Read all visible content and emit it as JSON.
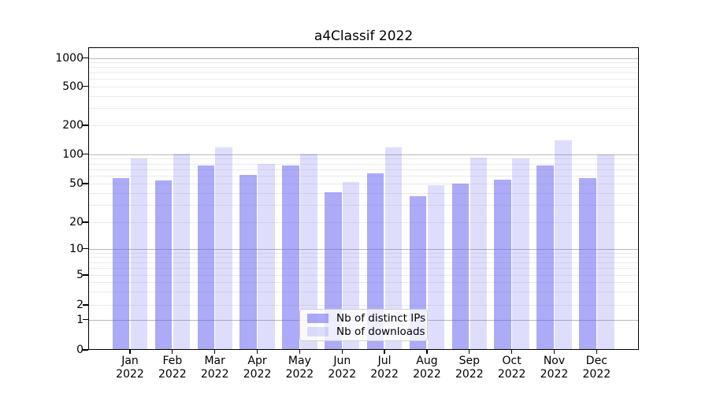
{
  "chart_data": {
    "type": "bar",
    "title": "a4Classif 2022",
    "x_tick_months": [
      "Jan",
      "Feb",
      "Mar",
      "Apr",
      "May",
      "Jun",
      "Jul",
      "Aug",
      "Sep",
      "Oct",
      "Nov",
      "Dec"
    ],
    "x_tick_year": "2022",
    "categories": [
      "Jan 2022",
      "Feb 2022",
      "Mar 2022",
      "Apr 2022",
      "May 2022",
      "Jun 2022",
      "Jul 2022",
      "Aug 2022",
      "Sep 2022",
      "Oct 2022",
      "Nov 2022",
      "Dec 2022"
    ],
    "series": [
      {
        "name": "Nb of distinct IPs",
        "color": "rgba(88,88,240,0.5)",
        "values": [
          57,
          54,
          76,
          61,
          77,
          41,
          64,
          37,
          50,
          55,
          77,
          57
        ]
      },
      {
        "name": "Nb of downloads",
        "color": "rgba(88,88,240,0.2)",
        "values": [
          90,
          102,
          117,
          80,
          101,
          52,
          117,
          48,
          92,
          91,
          140,
          100
        ]
      }
    ],
    "yscale": "symlog",
    "yticks": [
      0,
      1,
      2,
      5,
      10,
      20,
      50,
      100,
      200,
      500,
      1000
    ],
    "ylim": [
      0,
      1300
    ],
    "grid": "both",
    "legend": {
      "position": "lower center",
      "entries": [
        "Nb of distinct IPs",
        "Nb of downloads"
      ]
    },
    "colors": {
      "major_grid": "#b8b8b8",
      "minor_grid": "#ebebeb",
      "spine": "#000000",
      "text": "#000000",
      "bar_dark_rendered": "#aaaaf7",
      "bar_light_rendered": "#dddcfc"
    }
  }
}
